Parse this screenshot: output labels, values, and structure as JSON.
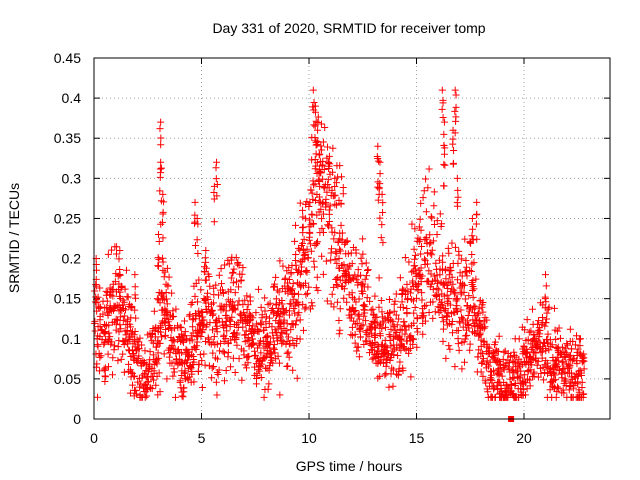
{
  "chart_data": {
    "type": "scatter",
    "title": "Day 331 of 2020, SRMTID for receiver tomp",
    "xlabel": "GPS time / hours",
    "ylabel": "SRMTID / TECUs",
    "xlim": [
      0,
      24
    ],
    "ylim": [
      0,
      0.45
    ],
    "xticks": [
      0,
      5,
      10,
      15,
      20
    ],
    "xtick_labels": [
      "0",
      "5",
      "10",
      "15",
      "20"
    ],
    "yticks": [
      0,
      0.05,
      0.1,
      0.15,
      0.2,
      0.25,
      0.3,
      0.35,
      0.4,
      0.45
    ],
    "ytick_labels": [
      "0",
      "0.05",
      "0.1",
      "0.15",
      "0.2",
      "0.25",
      "0.3",
      "0.35",
      "0.4",
      "0.45"
    ],
    "grid": true,
    "marker": "+",
    "series": [
      {
        "name": "SRMTID",
        "color": "#ff0000",
        "profile_x": [
          0,
          0.2,
          0.5,
          0.8,
          1.0,
          1.2,
          1.5,
          1.8,
          2.0,
          2.3,
          2.6,
          3.0,
          3.2,
          3.5,
          4.0,
          4.3,
          4.6,
          5.0,
          5.3,
          5.6,
          6.0,
          6.5,
          7.0,
          7.5,
          8.0,
          8.5,
          9.0,
          9.5,
          10.0,
          10.3,
          10.6,
          10.9,
          11.2,
          11.6,
          12.0,
          12.4,
          12.8,
          13.2,
          13.6,
          14.0,
          14.4,
          14.8,
          15.2,
          15.6,
          16.0,
          16.4,
          16.8,
          17.2,
          17.6,
          18.0,
          18.4,
          18.8,
          19.2,
          19.6,
          20.0,
          20.4,
          20.8,
          21.2,
          21.6,
          22.0,
          22.4,
          22.8
        ],
        "profile_y": [
          0.12,
          0.1,
          0.1,
          0.13,
          0.15,
          0.13,
          0.12,
          0.08,
          0.06,
          0.05,
          0.07,
          0.1,
          0.14,
          0.11,
          0.08,
          0.07,
          0.1,
          0.12,
          0.13,
          0.11,
          0.12,
          0.14,
          0.12,
          0.1,
          0.09,
          0.12,
          0.13,
          0.16,
          0.22,
          0.27,
          0.29,
          0.26,
          0.23,
          0.19,
          0.16,
          0.15,
          0.13,
          0.1,
          0.09,
          0.1,
          0.12,
          0.14,
          0.19,
          0.21,
          0.18,
          0.16,
          0.15,
          0.14,
          0.15,
          0.1,
          0.07,
          0.06,
          0.05,
          0.05,
          0.07,
          0.08,
          0.09,
          0.08,
          0.07,
          0.06,
          0.06,
          0.07
        ],
        "spikes": [
          {
            "x": 0.1,
            "y": 0.2
          },
          {
            "x": 1.2,
            "y": 0.21
          },
          {
            "x": 1.9,
            "y": 0.18
          },
          {
            "x": 3.1,
            "y": 0.37
          },
          {
            "x": 3.1,
            "y": 0.32
          },
          {
            "x": 3.2,
            "y": 0.28
          },
          {
            "x": 3.0,
            "y": 0.23
          },
          {
            "x": 4.7,
            "y": 0.27
          },
          {
            "x": 4.8,
            "y": 0.25
          },
          {
            "x": 5.7,
            "y": 0.32
          },
          {
            "x": 5.6,
            "y": 0.29
          },
          {
            "x": 5.2,
            "y": 0.21
          },
          {
            "x": 10.2,
            "y": 0.41
          },
          {
            "x": 10.3,
            "y": 0.39
          },
          {
            "x": 10.4,
            "y": 0.36
          },
          {
            "x": 10.5,
            "y": 0.33
          },
          {
            "x": 10.9,
            "y": 0.32
          },
          {
            "x": 11.2,
            "y": 0.3
          },
          {
            "x": 9.7,
            "y": 0.26
          },
          {
            "x": 13.2,
            "y": 0.34
          },
          {
            "x": 13.3,
            "y": 0.32
          },
          {
            "x": 13.4,
            "y": 0.28
          },
          {
            "x": 16.2,
            "y": 0.41
          },
          {
            "x": 16.8,
            "y": 0.41
          },
          {
            "x": 16.3,
            "y": 0.37
          },
          {
            "x": 16.7,
            "y": 0.36
          },
          {
            "x": 16.3,
            "y": 0.33
          },
          {
            "x": 16.9,
            "y": 0.3
          },
          {
            "x": 17.8,
            "y": 0.27
          },
          {
            "x": 17.6,
            "y": 0.25
          },
          {
            "x": 21.0,
            "y": 0.18
          }
        ],
        "zero_marker": {
          "x": 19.4,
          "y": 0.0
        }
      }
    ]
  }
}
